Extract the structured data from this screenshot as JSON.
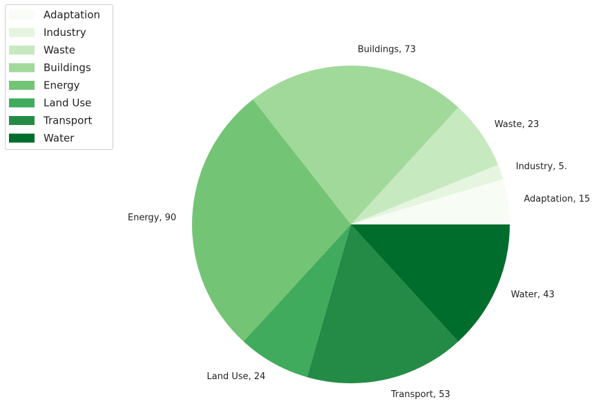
{
  "chart_data": {
    "type": "pie",
    "categories": [
      "Adaptation",
      "Industry",
      "Waste",
      "Buildings",
      "Energy",
      "Land Use",
      "Transport",
      "Water"
    ],
    "values": [
      15,
      5,
      23,
      73,
      90,
      24,
      53,
      43
    ],
    "value_labels": [
      "Adaptation, 15",
      "Industry, 5.",
      "Waste, 23",
      "Buildings, 73",
      "Energy, 90",
      "Land Use, 24",
      "Transport, 53",
      "Water, 43"
    ],
    "colors": [
      "#f7fcf5",
      "#e5f5e0",
      "#c7e9c0",
      "#a1d99b",
      "#74c476",
      "#41ab5d",
      "#238b45",
      "#006d2c"
    ],
    "legend": "upper left"
  }
}
